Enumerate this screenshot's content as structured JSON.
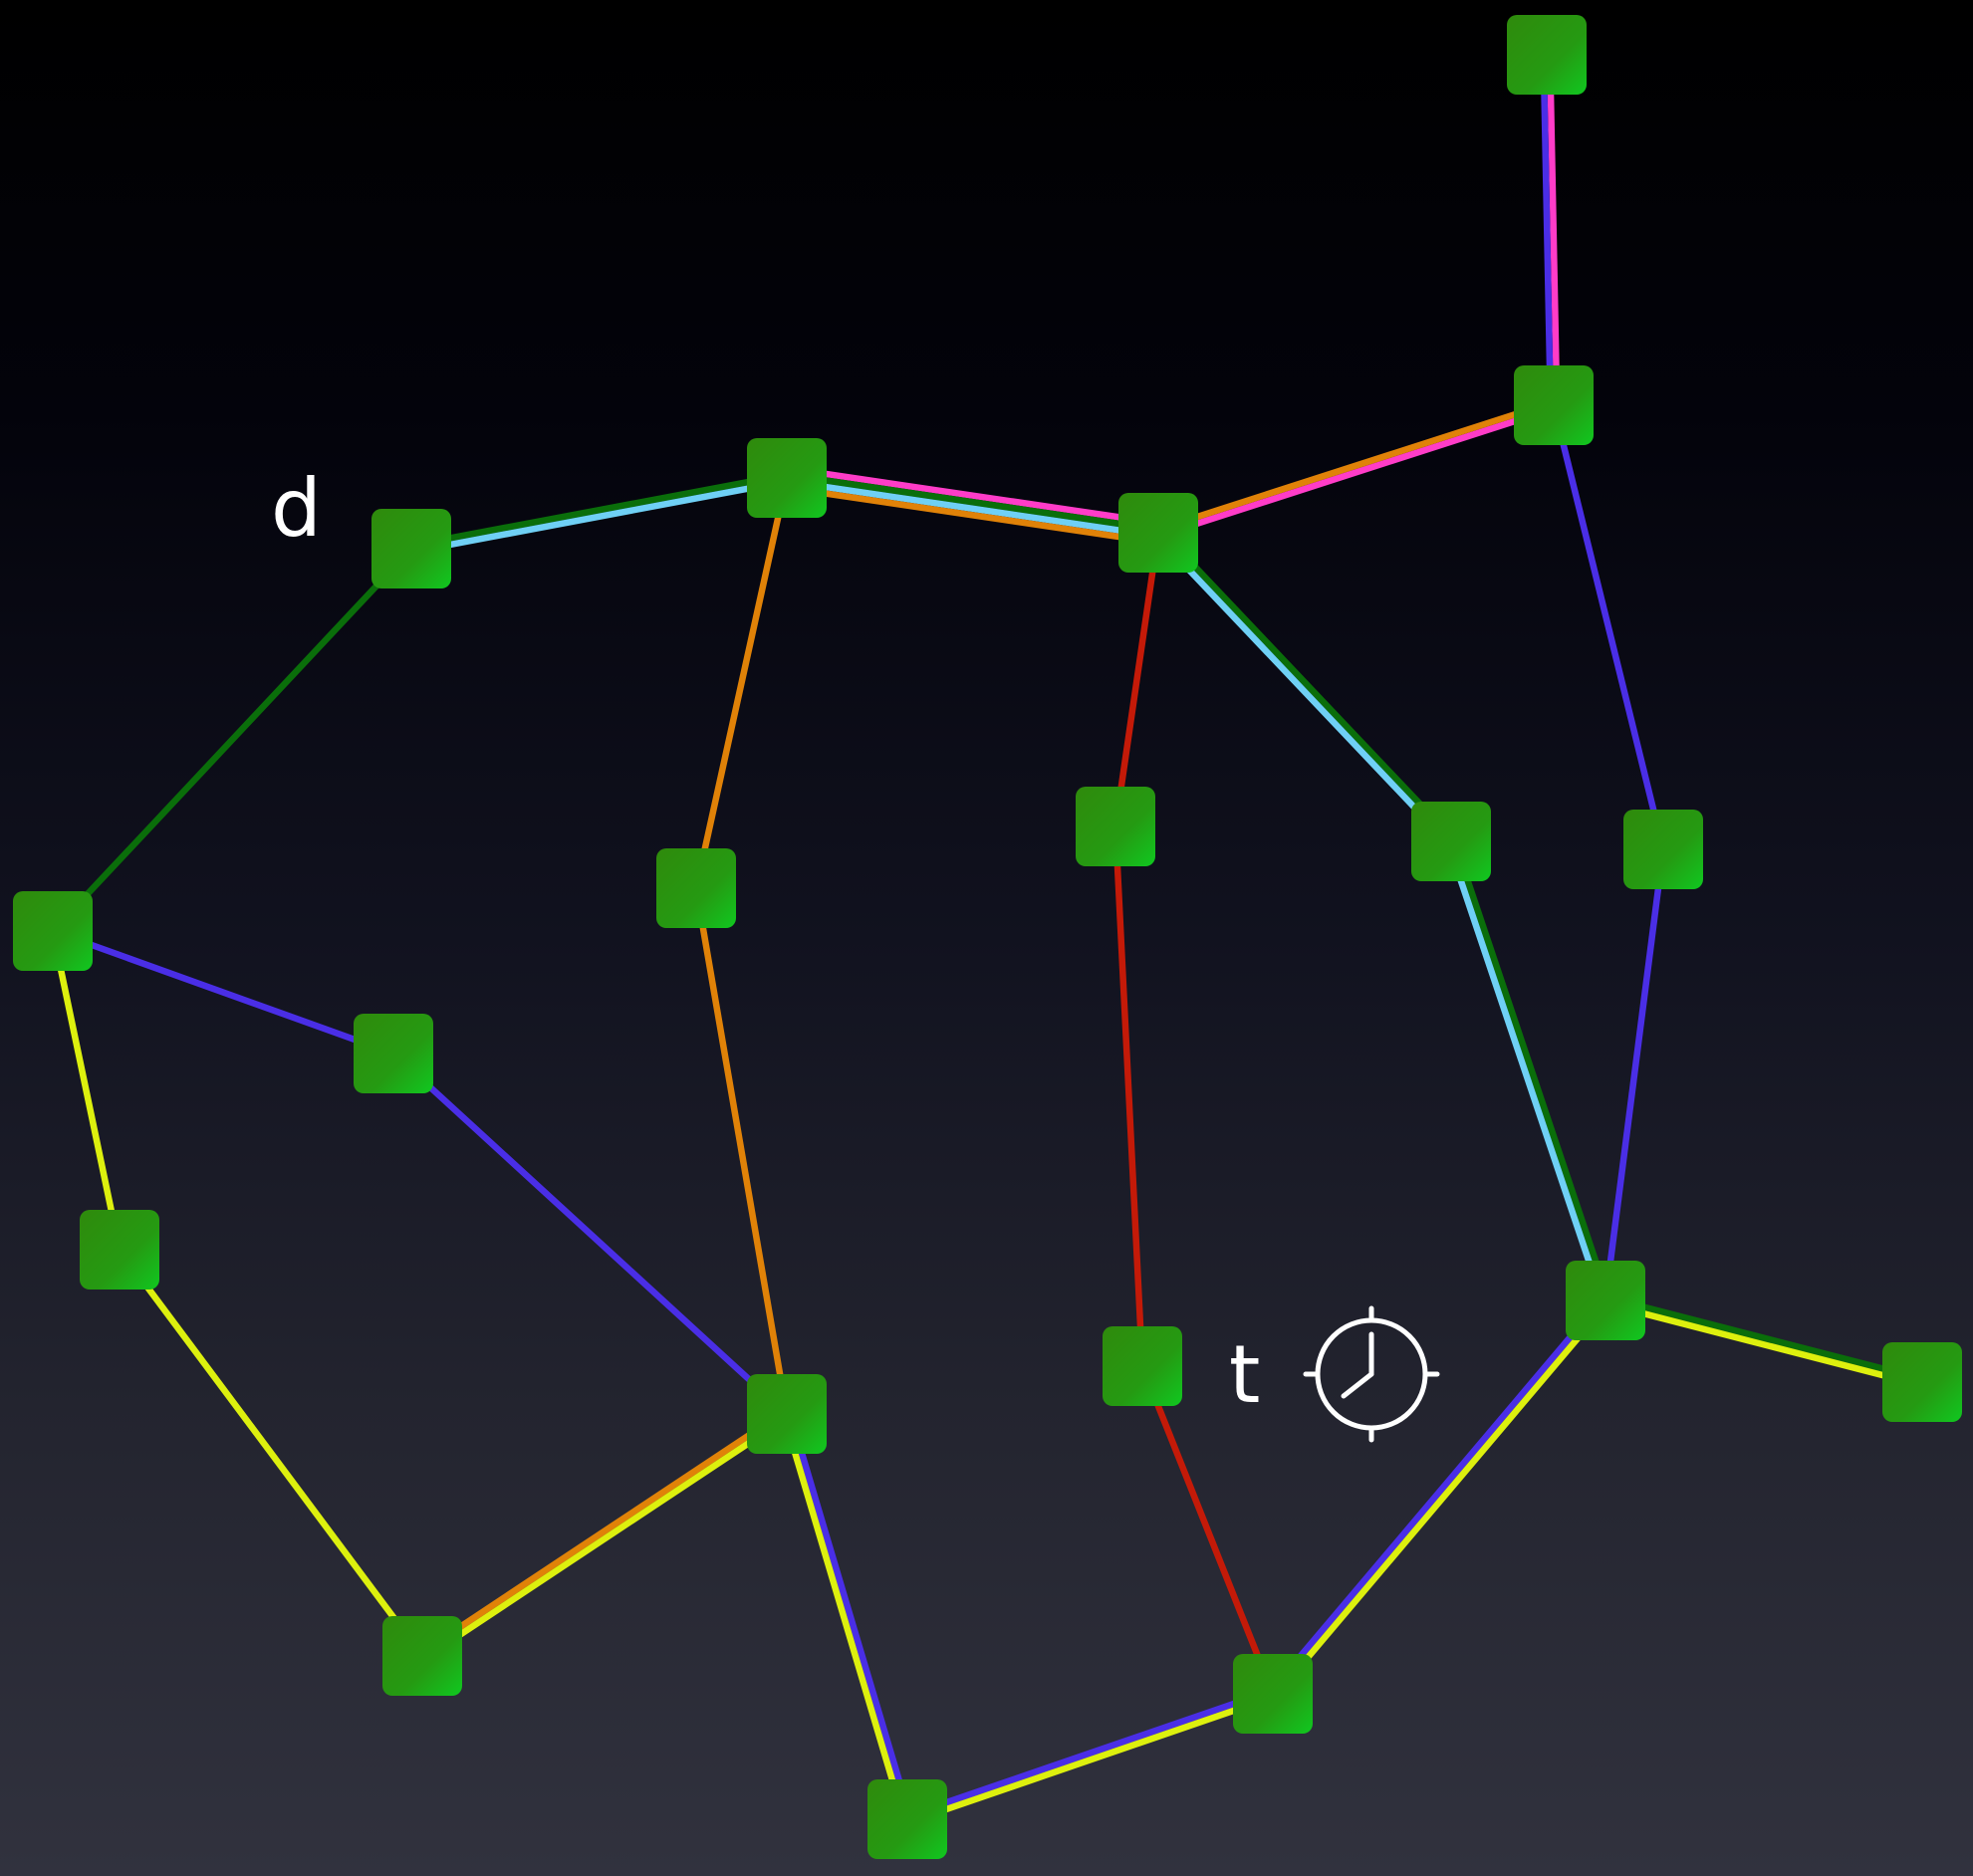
{
  "labels": {
    "node_d": "d",
    "node_t": "t"
  },
  "icons": {
    "timer": "clock-icon"
  },
  "colors": {
    "background_top": "#000000",
    "background_bottom": "#31323e",
    "node_fill": "#2a9a10",
    "node_highlight": "#14c41c",
    "green_route": "#0a6e0a",
    "light_blue_route": "#6fd0f5",
    "pink_route": "#ff3cc8",
    "orange_route": "#e08208",
    "purple_route": "#4a2ee6",
    "yellow_route": "#ddf00e",
    "red_route": "#c41a08",
    "label_text": "#ffffff"
  }
}
